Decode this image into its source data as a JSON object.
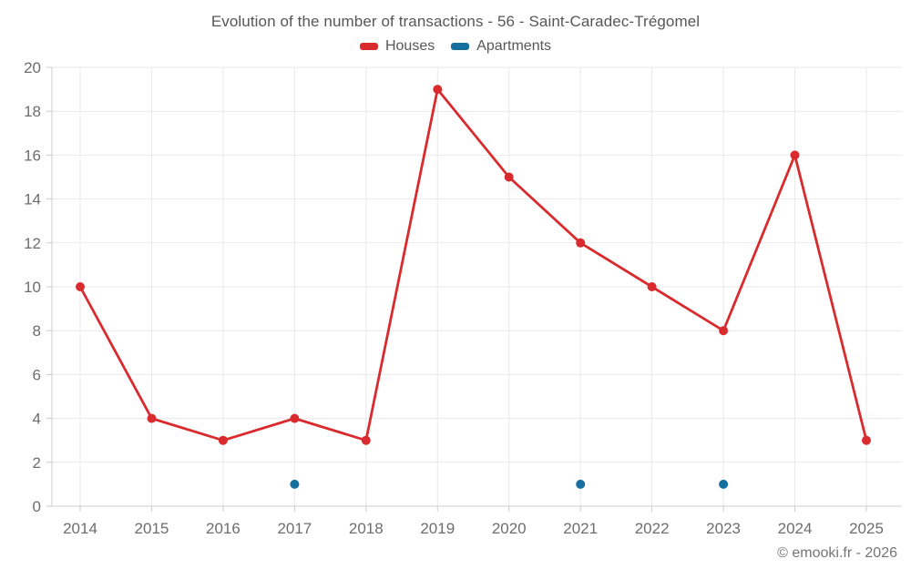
{
  "header": {
    "title": "Evolution of the number of transactions - 56 - Saint-Caradec-Trégomel"
  },
  "legend": {
    "items": [
      {
        "label": "Houses",
        "color": "#d92b2e"
      },
      {
        "label": "Apartments",
        "color": "#15709f"
      }
    ]
  },
  "footer": {
    "copyright": "© emooki.fr - 2026"
  },
  "colors": {
    "houses_series": "#d92b2e",
    "apartments_series": "#15709f",
    "grid_line": "#e9e9e9",
    "axis_line": "#cccccc",
    "tick_label": "#6d6d6d"
  },
  "chart_data": {
    "type": "line",
    "title": "Evolution of the number of transactions - 56 - Saint-Caradec-Trégomel",
    "x": [
      "2014",
      "2015",
      "2016",
      "2017",
      "2018",
      "2019",
      "2020",
      "2021",
      "2022",
      "2023",
      "2024",
      "2025"
    ],
    "series": [
      {
        "name": "Houses",
        "color": "#d92b2e",
        "style": "line+markers",
        "values": [
          10,
          4,
          3,
          4,
          3,
          19,
          15,
          12,
          10,
          8,
          16,
          3
        ]
      },
      {
        "name": "Apartments",
        "color": "#15709f",
        "style": "markers",
        "values": [
          null,
          null,
          null,
          1,
          null,
          null,
          null,
          1,
          null,
          1,
          null,
          null
        ]
      }
    ],
    "xlabel": "",
    "ylabel": "",
    "ylim": [
      0,
      20
    ],
    "yticks": [
      0,
      2,
      4,
      6,
      8,
      10,
      12,
      14,
      16,
      18,
      20
    ],
    "grid": true,
    "legend_position": "top"
  }
}
